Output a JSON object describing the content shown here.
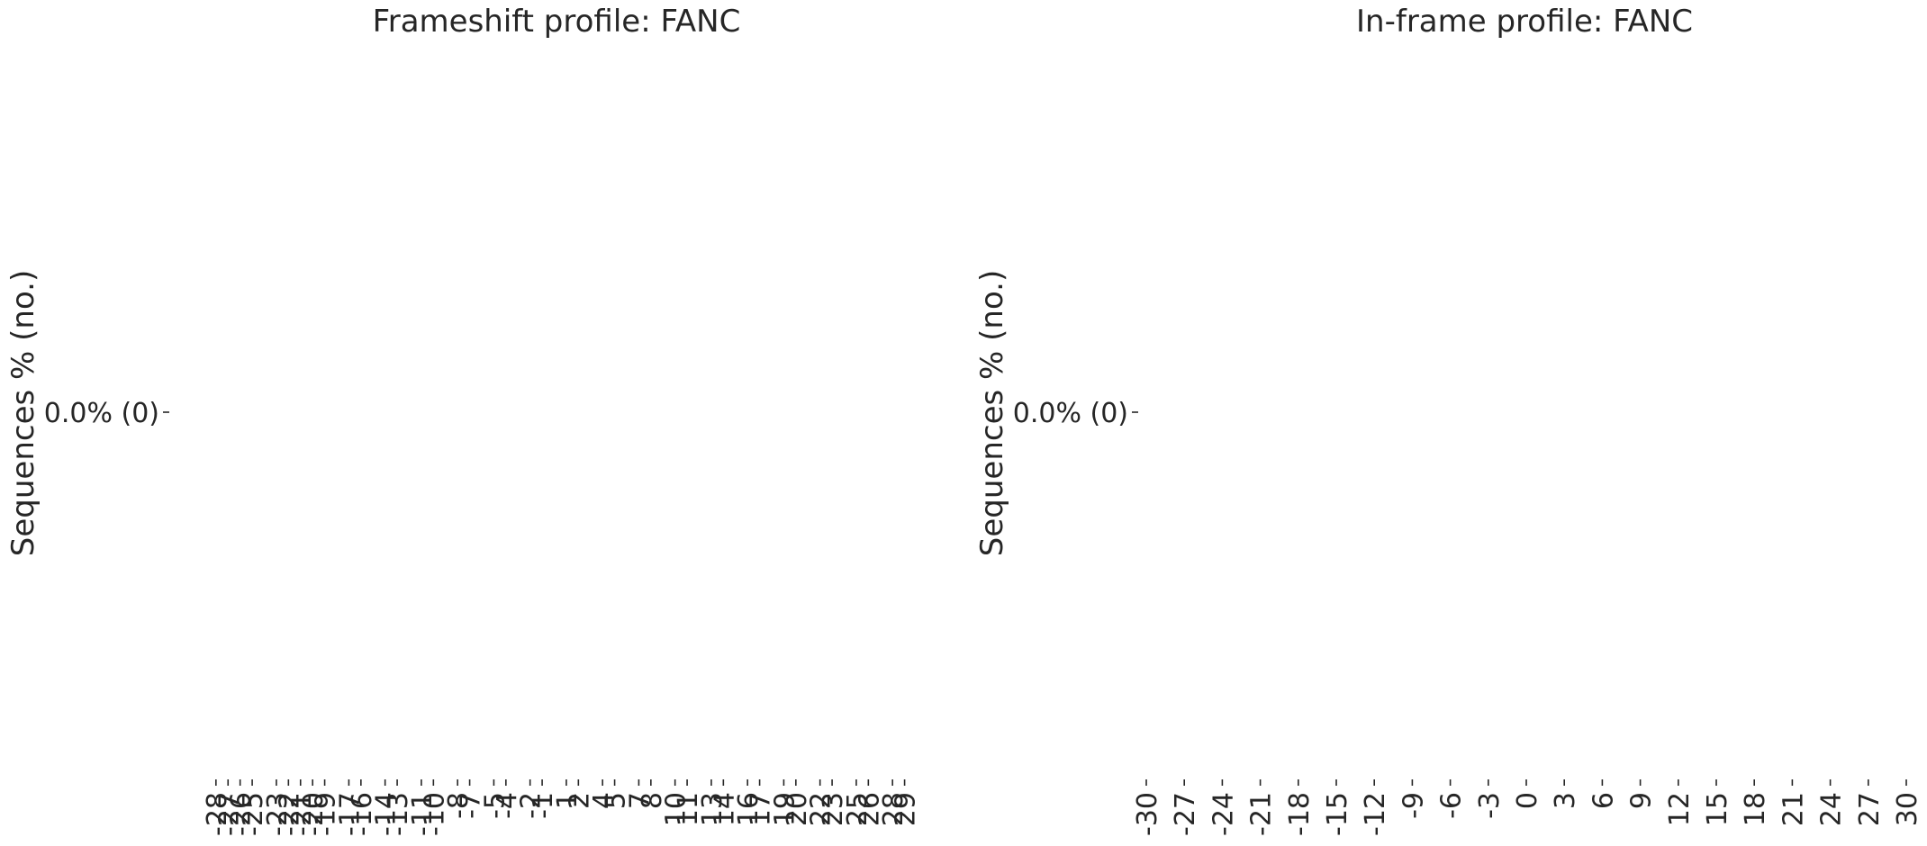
{
  "chart_data": [
    {
      "type": "bar",
      "title": "Frameshift profile: FANC",
      "ylabel": "Sequences % (no.)",
      "xlabel": "",
      "yticks": [
        "0.0% (0)"
      ],
      "categories": [
        -28,
        -27,
        -26,
        -25,
        -23,
        -22,
        -21,
        -20,
        -19,
        -17,
        -16,
        -14,
        -13,
        -11,
        -10,
        -8,
        -7,
        -5,
        -4,
        -2,
        -1,
        1,
        2,
        4,
        5,
        7,
        8,
        10,
        11,
        13,
        14,
        16,
        17,
        19,
        20,
        22,
        23,
        25,
        26,
        28,
        29
      ],
      "values": [
        0,
        0,
        0,
        0,
        0,
        0,
        0,
        0,
        0,
        0,
        0,
        0,
        0,
        0,
        0,
        0,
        0,
        0,
        0,
        0,
        0,
        0,
        0,
        0,
        0,
        0,
        0,
        0,
        0,
        0,
        0,
        0,
        0,
        0,
        0,
        0,
        0,
        0,
        0,
        0,
        0
      ],
      "xlim": [
        -30,
        30
      ]
    },
    {
      "type": "bar",
      "title": "In-frame profile: FANC",
      "ylabel": "Sequences % (no.)",
      "xlabel": "",
      "yticks": [
        "0.0% (0)"
      ],
      "categories": [
        -30,
        -27,
        -24,
        -21,
        -18,
        -15,
        -12,
        -9,
        -6,
        -3,
        0,
        3,
        6,
        9,
        12,
        15,
        18,
        21,
        24,
        27,
        30
      ],
      "values": [
        0,
        0,
        0,
        0,
        0,
        0,
        0,
        0,
        0,
        0,
        0,
        0,
        0,
        0,
        0,
        0,
        0,
        0,
        0,
        0,
        0
      ],
      "xlim": [
        -30,
        30
      ]
    }
  ]
}
